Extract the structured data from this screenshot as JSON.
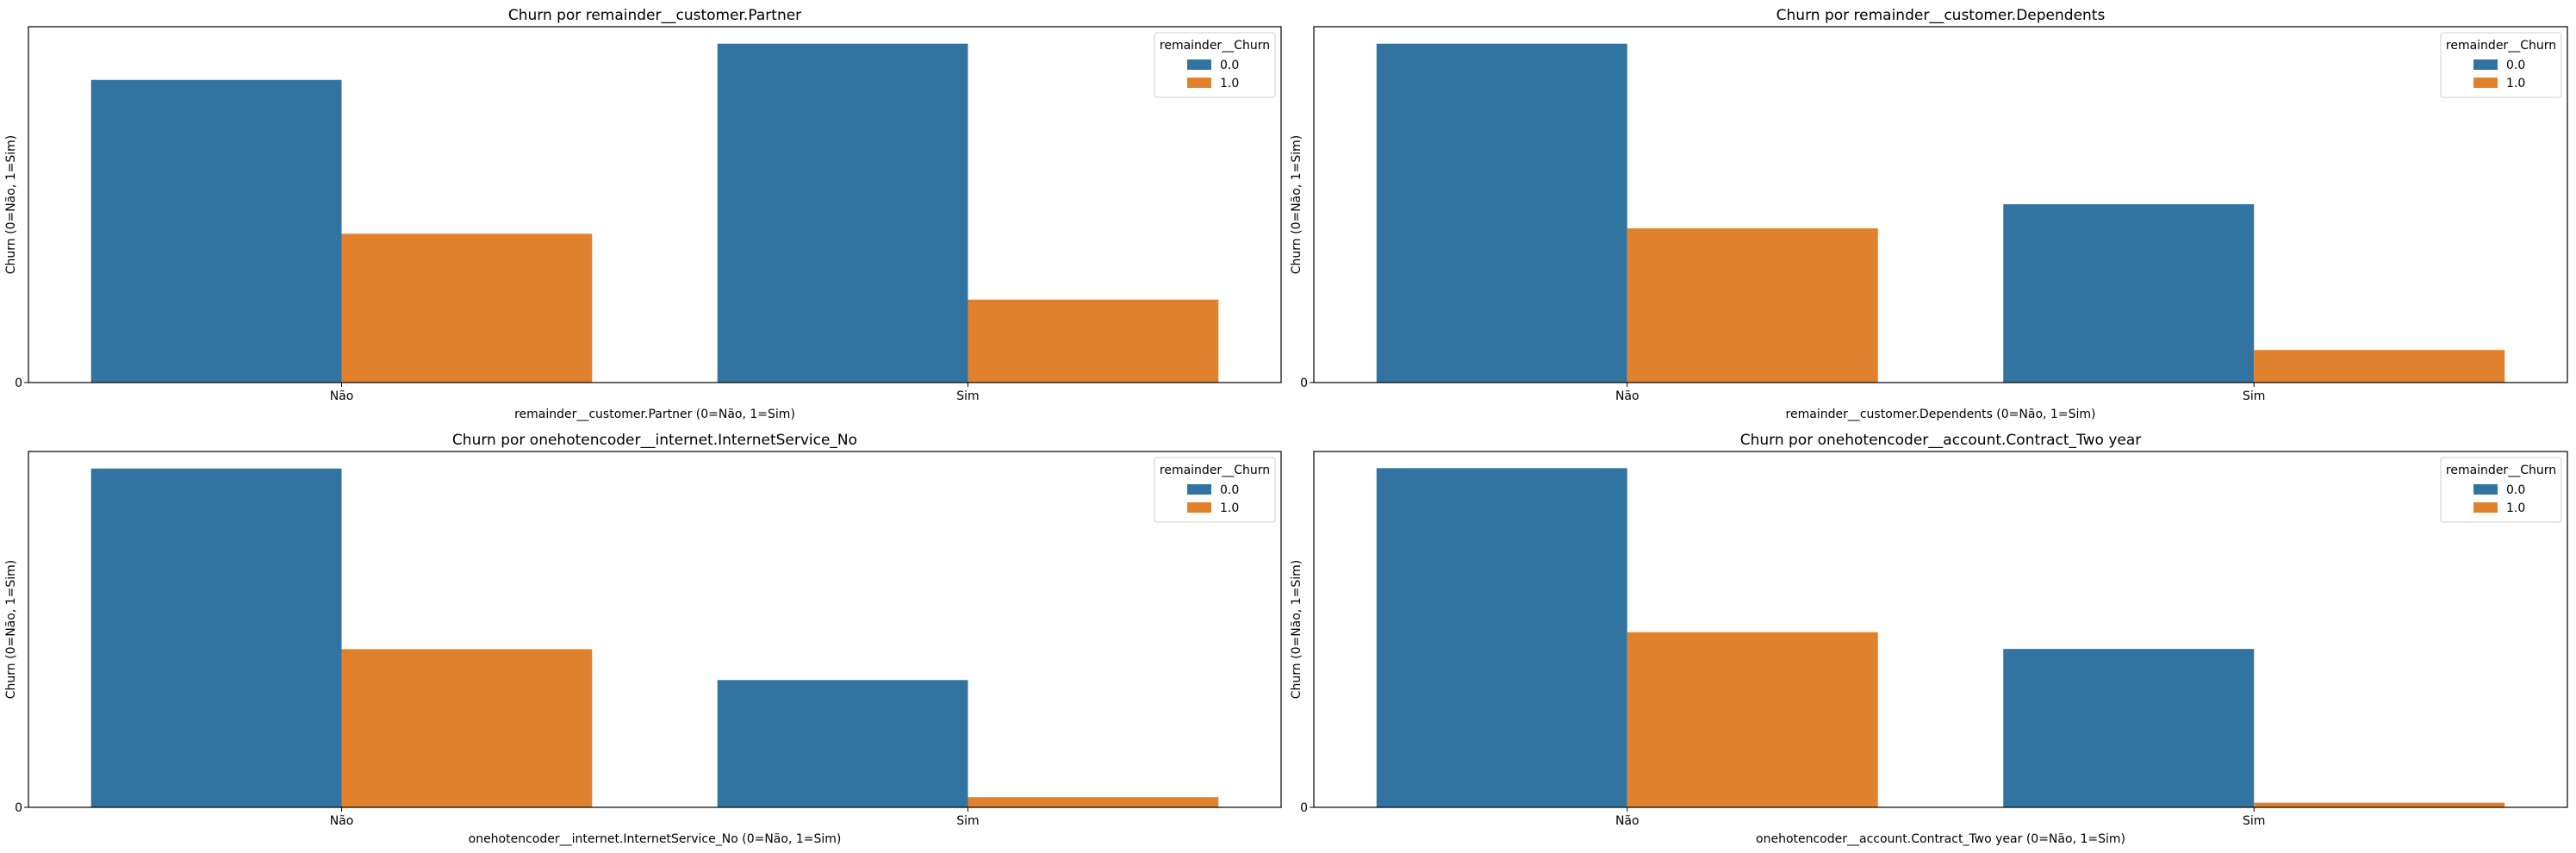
{
  "chart_data": [
    {
      "type": "bar",
      "title": "Churn por remainder__customer.Partner",
      "xlabel": "remainder__customer.Partner (0=Não, 1=Sim)",
      "ylabel": "Churn (0=Não, 1=Sim)",
      "categories": [
        "Não",
        "Sim"
      ],
      "series": [
        {
          "name": "0.0",
          "values": [
            2441,
            2733
          ]
        },
        {
          "name": "1.0",
          "values": [
            1200,
            669
          ]
        }
      ],
      "ylim": [
        0,
        2870
      ],
      "y_tick_labels": [
        "0"
      ],
      "legend": {
        "title": "remainder__Churn",
        "position": "top-right"
      }
    },
    {
      "type": "bar",
      "title": "Churn por remainder__customer.Dependents",
      "xlabel": "remainder__customer.Dependents (0=Não, 1=Sim)",
      "ylabel": "Churn (0=Não, 1=Sim)",
      "categories": [
        "Não",
        "Sim"
      ],
      "series": [
        {
          "name": "0.0",
          "values": [
            3390,
            1784
          ]
        },
        {
          "name": "1.0",
          "values": [
            1543,
            326
          ]
        }
      ],
      "ylim": [
        0,
        3560
      ],
      "y_tick_labels": [
        "0"
      ],
      "legend": {
        "title": "remainder__Churn",
        "position": "top-right"
      }
    },
    {
      "type": "bar",
      "title": "Churn por onehotencoder__internet.InternetService_No",
      "xlabel": "onehotencoder__internet.InternetService_No (0=Não, 1=Sim)",
      "ylabel": "Churn (0=Não, 1=Sim)",
      "categories": [
        "Não",
        "Sim"
      ],
      "series": [
        {
          "name": "0.0",
          "values": [
            3761,
            1413
          ]
        },
        {
          "name": "1.0",
          "values": [
            1756,
            113
          ]
        }
      ],
      "ylim": [
        0,
        3950
      ],
      "y_tick_labels": [
        "0"
      ],
      "legend": {
        "title": "remainder__Churn",
        "position": "top-right"
      }
    },
    {
      "type": "bar",
      "title": "Churn por onehotencoder__account.Contract_Two year",
      "xlabel": "onehotencoder__account.Contract_Two year (0=Não, 1=Sim)",
      "ylabel": "Churn (0=Não, 1=Sim)",
      "categories": [
        "Não",
        "Sim"
      ],
      "series": [
        {
          "name": "0.0",
          "values": [
            3527,
            1647
          ]
        },
        {
          "name": "1.0",
          "values": [
            1821,
            48
          ]
        }
      ],
      "ylim": [
        0,
        3700
      ],
      "y_tick_labels": [
        "0"
      ],
      "legend": {
        "title": "remainder__Churn",
        "position": "top-right"
      }
    }
  ],
  "colors": {
    "series_0": "#3274a1",
    "series_1": "#e1812c",
    "axis": "#000000"
  }
}
